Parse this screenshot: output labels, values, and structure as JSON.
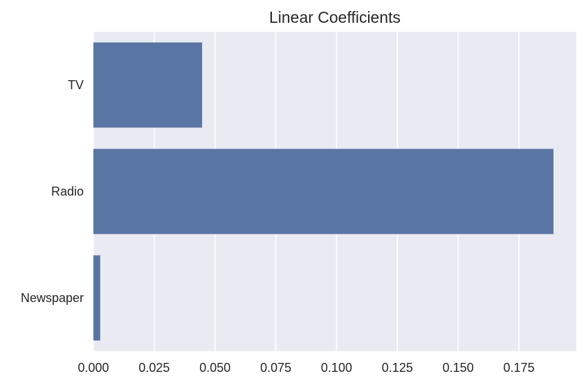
{
  "chart_data": {
    "type": "bar",
    "orientation": "horizontal",
    "title": "Linear Coefficients",
    "xlabel": "",
    "ylabel": "",
    "categories": [
      "TV",
      "Radio",
      "Newspaper"
    ],
    "values": [
      0.0447,
      0.1892,
      0.0028
    ],
    "xlim": [
      0,
      0.1986
    ],
    "xticks": [
      0.0,
      0.025,
      0.05,
      0.075,
      0.1,
      0.125,
      0.15,
      0.175
    ],
    "xtick_labels": [
      "0.000",
      "0.025",
      "0.050",
      "0.075",
      "0.100",
      "0.125",
      "0.150",
      "0.175"
    ],
    "grid": true,
    "bar_color": "#5975a4",
    "background_color": "#eaeaf2",
    "grid_color": "#ffffff"
  }
}
